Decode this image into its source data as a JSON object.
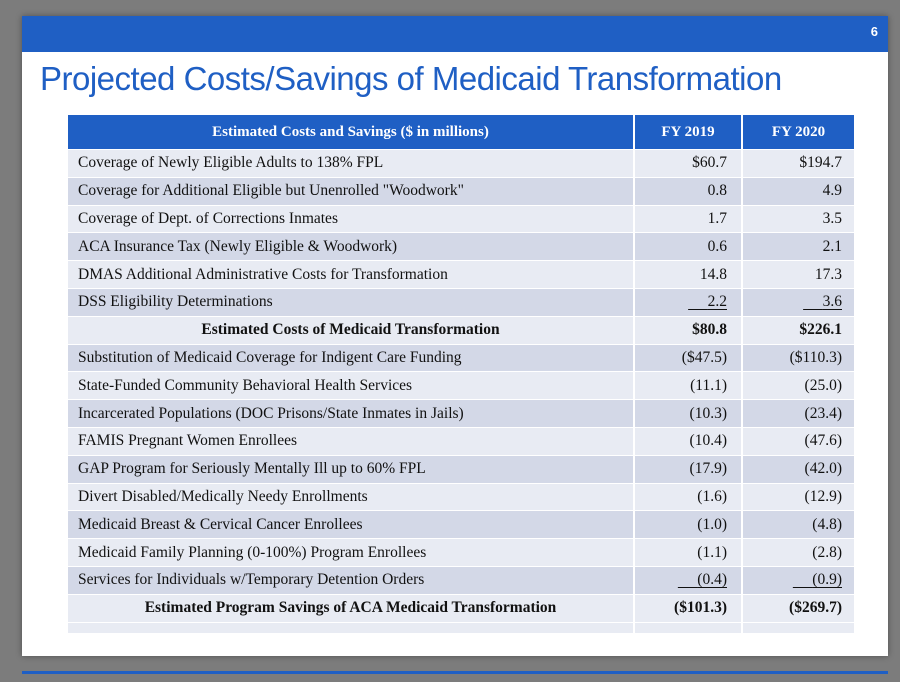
{
  "slide": {
    "number": "6",
    "title": "Projected Costs/Savings of Medicaid Transformation"
  },
  "colors": {
    "accent": "#1f5fc4",
    "row_light": "#e8ebf3",
    "row_dark": "#d3d8e7"
  },
  "table": {
    "headers": [
      "Estimated Costs and Savings ($ in millions)",
      "FY 2019",
      "FY 2020"
    ],
    "rows": [
      {
        "label": "Coverage of Newly Eligible Adults to 138% FPL",
        "fy2019": "$60.7",
        "fy2020": "$194.7"
      },
      {
        "label": "Coverage for Additional Eligible but Unenrolled \"Woodwork\"",
        "fy2019": "0.8",
        "fy2020": "4.9"
      },
      {
        "label": "Coverage of Dept. of Corrections Inmates",
        "fy2019": "1.7",
        "fy2020": "3.5"
      },
      {
        "label": "ACA Insurance Tax (Newly Eligible & Woodwork)",
        "fy2019": "0.6",
        "fy2020": "2.1"
      },
      {
        "label": "DMAS Additional Administrative Costs for Transformation",
        "fy2019": "14.8",
        "fy2020": "17.3"
      },
      {
        "label": "DSS Eligibility Determinations",
        "fy2019": "2.2",
        "fy2020": "3.6"
      },
      {
        "label": "Estimated Costs of  Medicaid Transformation",
        "fy2019": "$80.8",
        "fy2020": "$226.1"
      },
      {
        "label": "Substitution of Medicaid Coverage for Indigent Care Funding",
        "fy2019": "($47.5)",
        "fy2020": "($110.3)"
      },
      {
        "label": "State-Funded Community Behavioral Health Services",
        "fy2019": "(11.1)",
        "fy2020": "(25.0)"
      },
      {
        "label": "Incarcerated Populations (DOC Prisons/State Inmates in Jails)",
        "fy2019": "(10.3)",
        "fy2020": "(23.4)"
      },
      {
        "label": "FAMIS Pregnant Women Enrollees",
        "fy2019": "(10.4)",
        "fy2020": "(47.6)"
      },
      {
        "label": "GAP Program for Seriously Mentally Ill up to 60% FPL",
        "fy2019": "(17.9)",
        "fy2020": "(42.0)"
      },
      {
        "label": "Divert Disabled/Medically Needy Enrollments",
        "fy2019": "(1.6)",
        "fy2020": "(12.9)"
      },
      {
        "label": "Medicaid Breast & Cervical Cancer Enrollees",
        "fy2019": "(1.0)",
        "fy2020": "(4.8)"
      },
      {
        "label": "Medicaid Family Planning (0-100%) Program Enrollees",
        "fy2019": "(1.1)",
        "fy2020": "(2.8)"
      },
      {
        "label": "Services for Individuals w/Temporary Detention Orders",
        "fy2019": "(0.4)",
        "fy2020": "(0.9)"
      },
      {
        "label": "Estimated Program Savings of ACA Medicaid Transformation",
        "fy2019": "($101.3)",
        "fy2020": "($269.7)"
      }
    ]
  }
}
